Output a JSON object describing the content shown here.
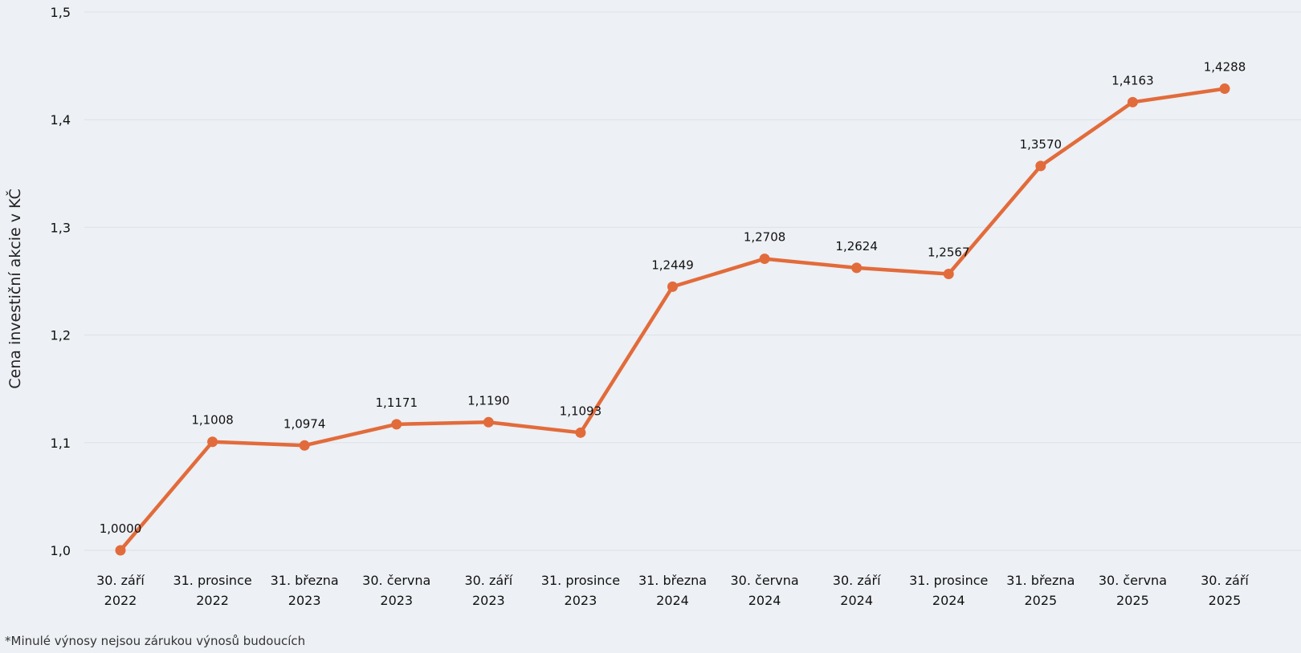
{
  "chart_data": {
    "type": "line",
    "title": "",
    "xlabel": "",
    "ylabel": "Cena investiční akcie v KČ",
    "ylim": [
      1.0,
      1.5
    ],
    "yticks": [
      "1,0",
      "1,1",
      "1,2",
      "1,3",
      "1,4",
      "1,5"
    ],
    "ytick_values": [
      1.0,
      1.1,
      1.2,
      1.3,
      1.4,
      1.5
    ],
    "grid": true,
    "categories": [
      [
        "30. září",
        "2022"
      ],
      [
        "31. prosince",
        "2022"
      ],
      [
        "31. března",
        "2023"
      ],
      [
        "30. června",
        "2023"
      ],
      [
        "30. září",
        "2023"
      ],
      [
        "31. prosince",
        "2023"
      ],
      [
        "31. března",
        "2024"
      ],
      [
        "30. června",
        "2024"
      ],
      [
        "30. září",
        "2024"
      ],
      [
        "31. prosince",
        "2024"
      ],
      [
        "31. března",
        "2025"
      ],
      [
        "30. června",
        "2025"
      ],
      [
        "30. září",
        "2025"
      ]
    ],
    "values": [
      1.0,
      1.1008,
      1.0974,
      1.1171,
      1.119,
      1.1093,
      1.2449,
      1.2708,
      1.2624,
      1.2567,
      1.357,
      1.4163,
      1.4288
    ],
    "value_labels": [
      "1,0000",
      "1,1008",
      "1,0974",
      "1,1171",
      "1,1190",
      "1,1093",
      "1,2449",
      "1,2708",
      "1,2624",
      "1,2567",
      "1,3570",
      "1,4163",
      "1,4288"
    ],
    "series_color": "#e26b3b",
    "grid_color": "#dde1e7"
  },
  "footnote": "*Minulé výnosy nejsou zárukou výnosů budoucích"
}
